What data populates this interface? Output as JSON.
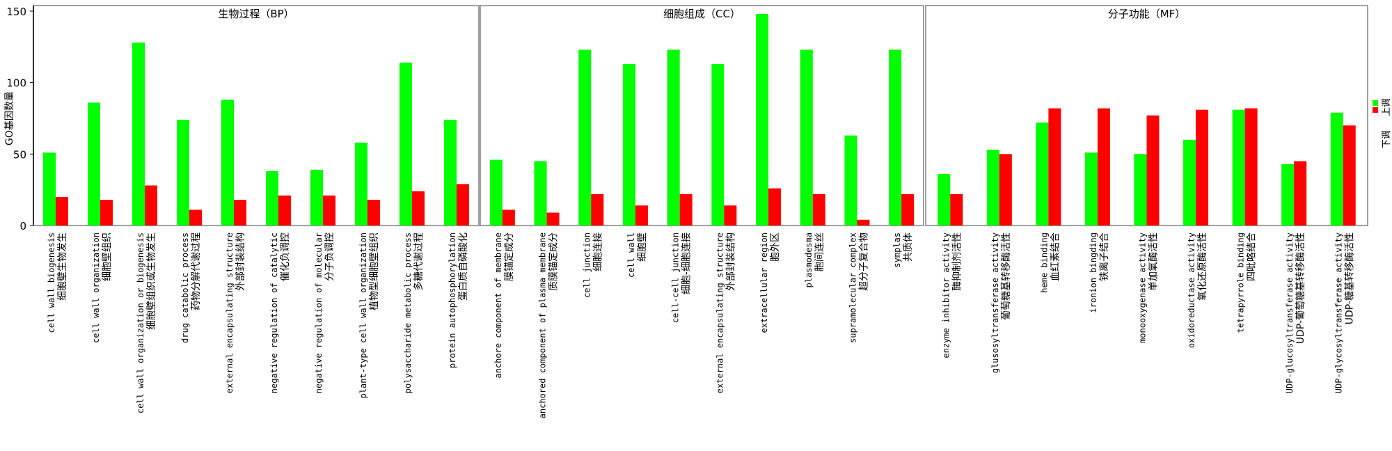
{
  "chart_data": {
    "type": "bar",
    "ylabel": "GO基因数量",
    "ylim": [
      0,
      150
    ],
    "yticks": [
      0,
      50,
      100,
      150
    ],
    "grid": false,
    "legend": {
      "placement": "right",
      "entries": [
        {
          "label": "下调",
          "color": "#00ff00"
        },
        {
          "label": "上调",
          "color": "#ff0000"
        }
      ]
    },
    "colors": {
      "series_a": "#00ff00",
      "series_b": "#ff0000",
      "axis": "#000000",
      "frame": "#808080"
    },
    "panels": [
      {
        "title": "生物过程（BP）",
        "categories": [
          {
            "en": "cell wall biogenesis",
            "zh": "细胞壁生物发生"
          },
          {
            "en": "cell wall organization",
            "zh": "细胞壁组织"
          },
          {
            "en": "cell wall organization or biogenesis",
            "zh": "细胞壁组织或生物发生"
          },
          {
            "en": "drug catabolic process",
            "zh": "药物分解代谢过程"
          },
          {
            "en": "external encapsulating structure",
            "zh": "外部封装结构"
          },
          {
            "en": "negative regulation of catalytic",
            "zh": "催化负调控"
          },
          {
            "en": "negative regulation of molecular",
            "zh": "分子负调控"
          },
          {
            "en": "plant-type cell wall organization",
            "zh": "植物型细胞壁组织"
          },
          {
            "en": "polysaccharide metabolic process",
            "zh": "多糖代谢过程"
          },
          {
            "en": "protein autophosphorylation",
            "zh": "蛋白质自磷酸化"
          }
        ],
        "series": [
          {
            "values": [
              51,
              86,
              128,
              74,
              88,
              38,
              39,
              58,
              114,
              74
            ]
          },
          {
            "values": [
              20,
              18,
              28,
              11,
              18,
              21,
              21,
              18,
              24,
              29
            ]
          }
        ]
      },
      {
        "title": "细胞组成（CC）",
        "categories": [
          {
            "en": "anchore component of membrane",
            "zh": "膜锚定成分"
          },
          {
            "en": "anchored component of plasma membrane",
            "zh": "质膜锚定成分"
          },
          {
            "en": "cell junction",
            "zh": "细胞连接"
          },
          {
            "en": "cell wall",
            "zh": "细胞壁"
          },
          {
            "en": "cell-cell junction",
            "zh": "细胞-细胞连接"
          },
          {
            "en": "external encapsulating structure",
            "zh": "外部封装结构"
          },
          {
            "en": "extracellular region",
            "zh": "胞外区"
          },
          {
            "en": "plasmodesma",
            "zh": "胞间连丝"
          },
          {
            "en": "supramolecular complex",
            "zh": "超分子复合物"
          },
          {
            "en": "symplas",
            "zh": "共质体"
          }
        ],
        "series": [
          {
            "values": [
              46,
              45,
              123,
              113,
              123,
              113,
              148,
              123,
              63,
              123
            ]
          },
          {
            "values": [
              11,
              9,
              22,
              14,
              22,
              14,
              26,
              22,
              4,
              22
            ]
          }
        ]
      },
      {
        "title": "分子功能（MF）",
        "categories": [
          {
            "en": "enzyme inhibitor activity",
            "zh": "酶抑制剂活性"
          },
          {
            "en": "glusosyltransferase activity",
            "zh": "葡萄糖基转移酶活性"
          },
          {
            "en": "heme binding",
            "zh": "血红素结合"
          },
          {
            "en": "ironion bingding",
            "zh": "铁离子结合"
          },
          {
            "en": "monooxygenase activity",
            "zh": "单加氧酶活性"
          },
          {
            "en": "oxidoreductase activity",
            "zh": "氧化还原酶活性"
          },
          {
            "en": "tetrapyrrole binding",
            "zh": "四吡咯结合"
          },
          {
            "en": "UDP-glucosyltransferase activity",
            "zh": "UDP-葡萄糖基转移酶活性"
          },
          {
            "en": "UDP-glycosyltransferase activity",
            "zh": "UDP-糖基转移酶活性"
          }
        ],
        "series": [
          {
            "values": [
              36,
              53,
              72,
              51,
              50,
              60,
              81,
              43,
              79
            ]
          },
          {
            "values": [
              22,
              50,
              82,
              82,
              77,
              81,
              82,
              45,
              70
            ]
          }
        ]
      }
    ]
  }
}
